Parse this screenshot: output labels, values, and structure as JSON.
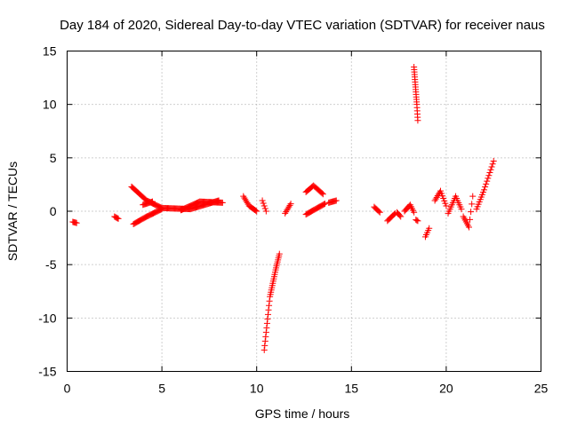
{
  "chart_data": {
    "type": "scatter",
    "title": "Day 184 of 2020, Sidereal Day-to-day VTEC variation (SDTVAR) for receiver naus",
    "xlabel": "GPS time / hours",
    "ylabel": "SDTVAR / TECUs",
    "xlim": [
      0,
      25
    ],
    "ylim": [
      -15,
      15
    ],
    "xticks": [
      0,
      5,
      10,
      15,
      20,
      25
    ],
    "yticks": [
      -15,
      -10,
      -5,
      0,
      5,
      10,
      15
    ],
    "grid": true,
    "legend": "none",
    "marker": "plus",
    "color": "#ff0000",
    "series": [
      {
        "name": "SDTVAR",
        "segments": [
          {
            "x": [
              0.3,
              0.5
            ],
            "y": [
              -1.0,
              -1.1
            ],
            "step": 0.05
          },
          {
            "x": [
              2.5,
              2.7
            ],
            "y": [
              -0.5,
              -0.7
            ],
            "step": 0.05
          },
          {
            "x": [
              3.4,
              4.2,
              5.0,
              6.5,
              8.0
            ],
            "y": [
              2.3,
              1.0,
              0.3,
              0.2,
              1.0
            ],
            "step": 0.05
          },
          {
            "x": [
              3.5,
              4.2,
              5.0
            ],
            "y": [
              -1.2,
              -0.5,
              0.2
            ],
            "step": 0.05
          },
          {
            "x": [
              4.0,
              4.5
            ],
            "y": [
              0.6,
              0.9
            ],
            "step": 0.05
          },
          {
            "x": [
              6.0,
              7.0,
              8.2
            ],
            "y": [
              0.1,
              0.9,
              0.8
            ],
            "step": 0.05
          },
          {
            "x": [
              9.3,
              9.6,
              10.0
            ],
            "y": [
              1.4,
              0.5,
              0.0
            ],
            "step": 0.05
          },
          {
            "x": [
              10.3,
              10.5
            ],
            "y": [
              1.0,
              0.0
            ],
            "step": 0.05
          },
          {
            "x": [
              10.4,
              10.7,
              11.0,
              11.2
            ],
            "y": [
              -13.0,
              -8.0,
              -5.5,
              -4.0
            ],
            "step": 0.025
          },
          {
            "x": [
              11.5,
              11.8
            ],
            "y": [
              -0.2,
              0.7
            ],
            "step": 0.05
          },
          {
            "x": [
              12.6,
              13.0,
              13.5
            ],
            "y": [
              1.8,
              2.4,
              1.6
            ],
            "step": 0.05
          },
          {
            "x": [
              12.6,
              13.2,
              13.6
            ],
            "y": [
              -0.3,
              0.3,
              0.7
            ],
            "step": 0.05
          },
          {
            "x": [
              13.8,
              14.2
            ],
            "y": [
              0.8,
              1.0
            ],
            "step": 0.05
          },
          {
            "x": [
              16.2,
              16.5
            ],
            "y": [
              0.4,
              -0.1
            ],
            "step": 0.05
          },
          {
            "x": [
              16.9,
              17.3
            ],
            "y": [
              -0.9,
              -0.2
            ],
            "step": 0.05
          },
          {
            "x": [
              17.4,
              17.6
            ],
            "y": [
              -0.1,
              -0.5
            ],
            "step": 0.05
          },
          {
            "x": [
              17.8,
              18.1,
              18.3
            ],
            "y": [
              0.0,
              0.6,
              -0.1
            ],
            "step": 0.05
          },
          {
            "x": [
              18.3,
              18.45,
              18.5
            ],
            "y": [
              13.5,
              10.0,
              8.5
            ],
            "step": 0.01
          },
          {
            "x": [
              18.4,
              18.5
            ],
            "y": [
              -0.8,
              -0.9
            ],
            "step": 0.05
          },
          {
            "x": [
              18.9,
              19.1
            ],
            "y": [
              -2.4,
              -1.6
            ],
            "step": 0.05
          },
          {
            "x": [
              19.4,
              19.7,
              20.0
            ],
            "y": [
              1.0,
              1.9,
              0.5
            ],
            "step": 0.05
          },
          {
            "x": [
              20.1,
              20.5,
              20.8
            ],
            "y": [
              -0.2,
              1.4,
              0.2
            ],
            "step": 0.05
          },
          {
            "x": [
              20.9,
              21.2,
              21.4
            ],
            "y": [
              -0.5,
              -1.5,
              1.4
            ],
            "step": 0.05
          },
          {
            "x": [
              21.6,
              22.0,
              22.5
            ],
            "y": [
              0.2,
              2.0,
              4.7
            ],
            "step": 0.05
          }
        ]
      }
    ]
  }
}
